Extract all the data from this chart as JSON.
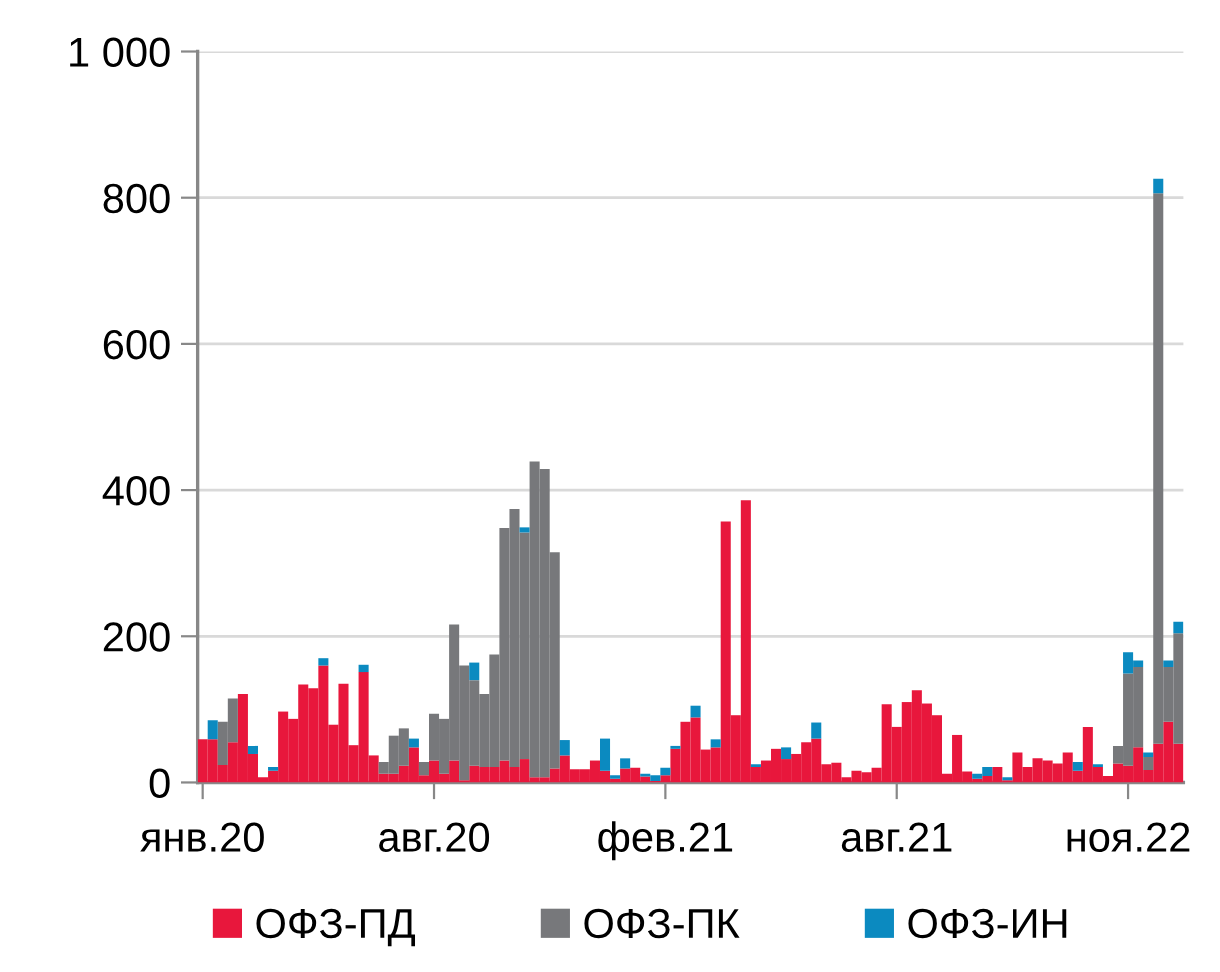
{
  "chart_data": {
    "type": "bar",
    "stacked": true,
    "categories": [
      "янв.20",
      null,
      null,
      null,
      null,
      null,
      null,
      null,
      null,
      null,
      null,
      null,
      null,
      null,
      null,
      null,
      null,
      null,
      null,
      null,
      null,
      null,
      null,
      "авг.20",
      null,
      null,
      null,
      null,
      null,
      null,
      null,
      null,
      null,
      null,
      null,
      null,
      null,
      null,
      null,
      null,
      null,
      null,
      null,
      null,
      null,
      null,
      "фев.21",
      null,
      null,
      null,
      null,
      null,
      null,
      null,
      null,
      null,
      null,
      null,
      null,
      null,
      null,
      null,
      null,
      null,
      null,
      null,
      null,
      null,
      null,
      "авг.21",
      null,
      null,
      null,
      null,
      null,
      null,
      null,
      null,
      null,
      null,
      null,
      null,
      null,
      null,
      null,
      null,
      null,
      null,
      null,
      null,
      null,
      null,
      "ноя.22",
      null,
      null,
      null,
      null,
      null
    ],
    "series": [
      {
        "name": "ОФЗ-ПД",
        "color": "#e8173c",
        "values": [
          59,
          59,
          24,
          55,
          121,
          39,
          7,
          16,
          97,
          87,
          134,
          129,
          160,
          79,
          135,
          51,
          151,
          37,
          12,
          12,
          23,
          48,
          10,
          30,
          12,
          30,
          3,
          23,
          21,
          21,
          30,
          21,
          32,
          7,
          7,
          19,
          37,
          18,
          18,
          30,
          16,
          5,
          19,
          20,
          8,
          2,
          10,
          46,
          83,
          89,
          45,
          48,
          357,
          92,
          386,
          21,
          30,
          46,
          32,
          39,
          55,
          60,
          25,
          27,
          7,
          16,
          14,
          20,
          107,
          76,
          110,
          126,
          108,
          92,
          12,
          65,
          15,
          5,
          9,
          21,
          3,
          41,
          21,
          33,
          30,
          26,
          41,
          16,
          76,
          21,
          9,
          26,
          23,
          48,
          17,
          53,
          83,
          53
        ]
      },
      {
        "name": "ОФЗ-ПК",
        "color": "#77787b",
        "values": [
          0,
          0,
          59,
          60,
          0,
          0,
          0,
          0,
          0,
          0,
          0,
          0,
          0,
          0,
          0,
          0,
          0,
          0,
          16,
          52,
          51,
          0,
          18,
          64,
          75,
          186,
          157,
          117,
          100,
          154,
          318,
          353,
          310,
          432,
          422,
          296,
          0,
          0,
          0,
          0,
          0,
          0,
          0,
          0,
          0,
          0,
          0,
          0,
          0,
          0,
          0,
          0,
          0,
          0,
          0,
          0,
          0,
          0,
          0,
          0,
          0,
          0,
          0,
          0,
          0,
          0,
          0,
          0,
          0,
          0,
          0,
          0,
          0,
          0,
          0,
          0,
          0,
          0,
          0,
          0,
          0,
          0,
          0,
          0,
          0,
          0,
          0,
          0,
          0,
          0,
          0,
          24,
          126,
          110,
          18,
          753,
          75,
          151
        ]
      },
      {
        "name": "ОФЗ-ИН",
        "color": "#0b8ac0",
        "values": [
          0,
          26,
          0,
          0,
          0,
          11,
          0,
          5,
          0,
          0,
          0,
          0,
          10,
          0,
          0,
          0,
          10,
          0,
          0,
          0,
          0,
          12,
          0,
          0,
          0,
          0,
          0,
          24,
          0,
          0,
          0,
          0,
          7,
          0,
          0,
          0,
          21,
          0,
          0,
          0,
          44,
          5,
          14,
          0,
          4,
          8,
          10,
          4,
          0,
          16,
          0,
          11,
          0,
          0,
          0,
          4,
          0,
          0,
          16,
          0,
          0,
          22,
          0,
          0,
          0,
          0,
          0,
          0,
          0,
          0,
          0,
          0,
          0,
          0,
          0,
          0,
          0,
          7,
          12,
          0,
          4,
          0,
          0,
          0,
          0,
          0,
          0,
          12,
          0,
          4,
          0,
          0,
          29,
          9,
          6,
          20,
          9,
          16
        ]
      }
    ],
    "ylim": [
      0,
      1000
    ],
    "yticks": [
      0,
      200,
      400,
      600,
      800,
      {
        "value": 1000,
        "label": "1 000"
      }
    ],
    "grid": "y",
    "legend": "bottom"
  }
}
